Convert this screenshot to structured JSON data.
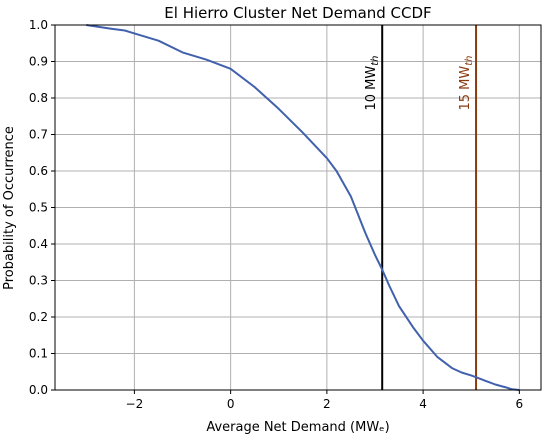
{
  "chart_data": {
    "type": "line",
    "title": "El Hierro Cluster Net Demand CCDF",
    "xlabel": "Average Net Demand (MWₑ)",
    "ylabel": "Probability of Occurrence",
    "xlim": [
      -3.65,
      6.45
    ],
    "ylim": [
      0.0,
      1.0
    ],
    "grid": true,
    "x_ticks": [
      -2,
      0,
      2,
      4,
      6
    ],
    "x_tick_labels": [
      "−2",
      "0",
      "2",
      "4",
      "6"
    ],
    "y_ticks": [
      0.0,
      0.1,
      0.2,
      0.3,
      0.4,
      0.5,
      0.6,
      0.7,
      0.8,
      0.9,
      1.0
    ],
    "y_tick_labels": [
      "0.0",
      "0.1",
      "0.2",
      "0.3",
      "0.4",
      "0.5",
      "0.6",
      "0.7",
      "0.8",
      "0.9",
      "1.0"
    ],
    "series": [
      {
        "color": "#4161ad",
        "x": [
          -3.0,
          -2.5,
          -2.2,
          -2.0,
          -1.5,
          -1.0,
          -0.5,
          0.0,
          0.5,
          1.0,
          1.5,
          2.0,
          2.2,
          2.5,
          2.8,
          3.0,
          3.15,
          3.3,
          3.5,
          3.8,
          4.0,
          4.3,
          4.6,
          4.8,
          5.0,
          5.1,
          5.3,
          5.5,
          5.7,
          5.85,
          6.0
        ],
        "y": [
          1.0,
          0.99,
          0.985,
          0.977,
          0.957,
          0.925,
          0.905,
          0.88,
          0.83,
          0.77,
          0.705,
          0.635,
          0.6,
          0.53,
          0.43,
          0.37,
          0.33,
          0.285,
          0.23,
          0.17,
          0.135,
          0.09,
          0.06,
          0.048,
          0.04,
          0.035,
          0.025,
          0.015,
          0.008,
          0.002,
          0.0
        ]
      }
    ],
    "vlines": [
      {
        "x": 3.15,
        "color": "#000000",
        "label": "10 MW",
        "label_sub": "th",
        "label_color": "#000000"
      },
      {
        "x": 5.1,
        "color": "#8b3a0f",
        "label": "15 MW",
        "label_sub": "th",
        "label_color": "#8b3a0f"
      }
    ]
  }
}
